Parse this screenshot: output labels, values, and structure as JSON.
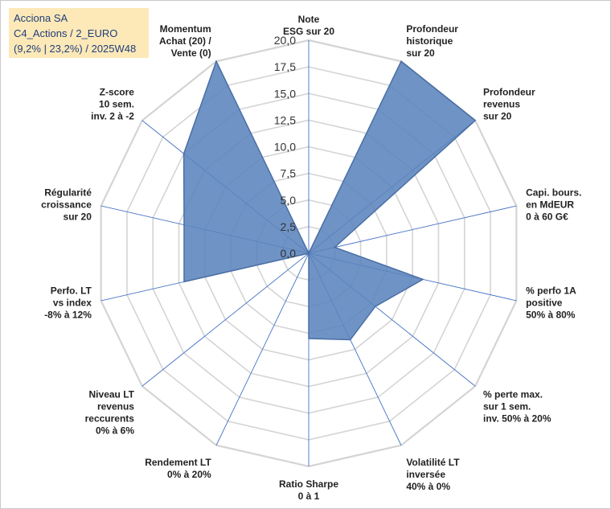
{
  "title": {
    "line1": "Acciona SA",
    "line2": "C4_Actions / 2_EURO",
    "line3": "(9,2% | 23,2%) / 2025W48"
  },
  "colors": {
    "fill": "#5b84bd",
    "stroke": "#4a6fa5",
    "grid": "#d4d4d4",
    "spoke": "#4472c4",
    "title_bg": "#fde9b8",
    "title_text": "#1f3d7a"
  },
  "chart_data": {
    "type": "radar",
    "title": "Acciona SA",
    "rmin": 0,
    "rmax": 20,
    "tick_step": 2.5,
    "tick_labels": [
      "0,0",
      "2,5",
      "5,0",
      "7,5",
      "10,0",
      "12,5",
      "15,0",
      "17,5",
      "20,0"
    ],
    "grid": true,
    "axes": [
      {
        "label": [
          "Note",
          "ESG sur 20"
        ],
        "value": 0
      },
      {
        "label": [
          "Profondeur",
          "historique",
          "sur 20"
        ],
        "value": 20
      },
      {
        "label": [
          "Profondeur",
          "revenus",
          "sur 20"
        ],
        "value": 20
      },
      {
        "label": [
          "Capi. bours.",
          "en MdEUR",
          "0 à 60 G€"
        ],
        "value": 2.5
      },
      {
        "label": [
          "% perfo 1A",
          "positive",
          "50% à 80%"
        ],
        "value": 11
      },
      {
        "label": [
          "% perte max.",
          "sur 1 sem.",
          "inv. 50% à 20%"
        ],
        "value": 8
      },
      {
        "label": [
          "Volatilité LT",
          "inversée",
          "40% à 0%"
        ],
        "value": 9
      },
      {
        "label": [
          "Ratio Sharpe",
          "0 à 1"
        ],
        "value": 8
      },
      {
        "label": [
          "Rendement LT",
          "0% à 20%"
        ],
        "value": 0
      },
      {
        "label": [
          "Niveau LT",
          "revenus",
          "reccurents",
          "0% à 6%"
        ],
        "value": 0
      },
      {
        "label": [
          "Perfo. LT",
          "vs index",
          "-8% à 12%"
        ],
        "value": 12
      },
      {
        "label": [
          "Régularité",
          "croissance",
          "sur 20"
        ],
        "value": 12
      },
      {
        "label": [
          "Z-score",
          "10 sem.",
          "inv. 2 à -2"
        ],
        "value": 15
      },
      {
        "label": [
          "Momentum",
          "Achat (20) /",
          "Vente (0)"
        ],
        "value": 20
      }
    ]
  }
}
